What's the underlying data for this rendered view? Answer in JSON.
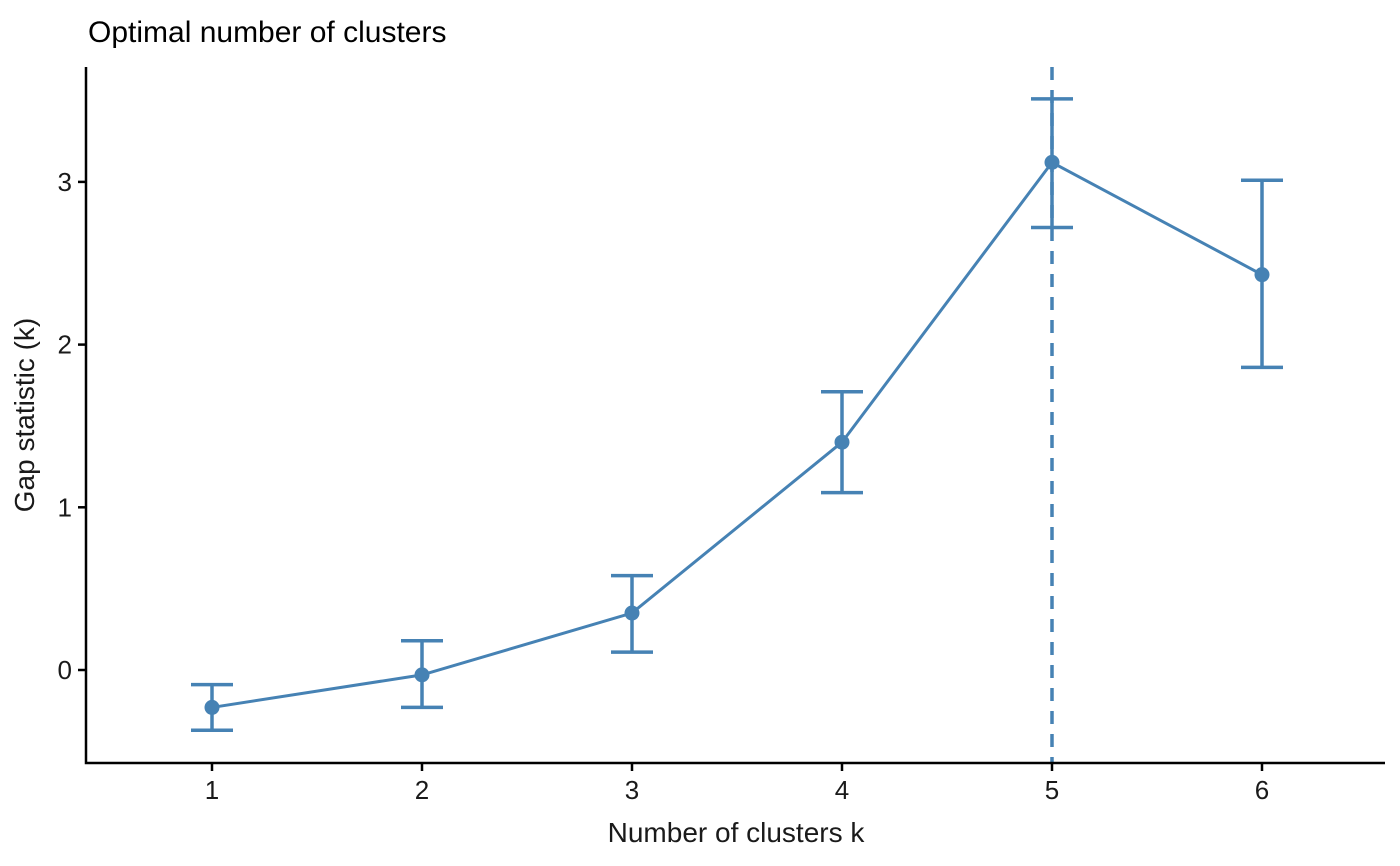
{
  "chart_data": {
    "type": "line",
    "title": "Optimal number of clusters",
    "xlabel": "Number of clusters k",
    "ylabel": "Gap statistic (k)",
    "x": [
      1,
      2,
      3,
      4,
      5,
      6
    ],
    "x_ticks": [
      "1",
      "2",
      "3",
      "4",
      "5",
      "6"
    ],
    "y_ticks": [
      0,
      1,
      2,
      3
    ],
    "series": [
      {
        "name": "Gap statistic",
        "values": [
          -0.23,
          -0.03,
          0.35,
          1.4,
          3.12,
          2.43
        ]
      }
    ],
    "error_low": [
      -0.37,
      -0.23,
      0.11,
      1.09,
      2.72,
      1.86
    ],
    "error_high": [
      -0.09,
      0.18,
      0.58,
      1.71,
      3.51,
      3.01
    ],
    "optimal_k": 5,
    "ylim": [
      -0.57,
      3.71
    ],
    "xlim": [
      0.4,
      6.6
    ],
    "grid": false,
    "legend": false,
    "vline_style": "dashed",
    "line_color": "#4682B4",
    "axis_color": "#000000",
    "text_color": "#1a1a1a",
    "background_color": "#ffffff"
  }
}
